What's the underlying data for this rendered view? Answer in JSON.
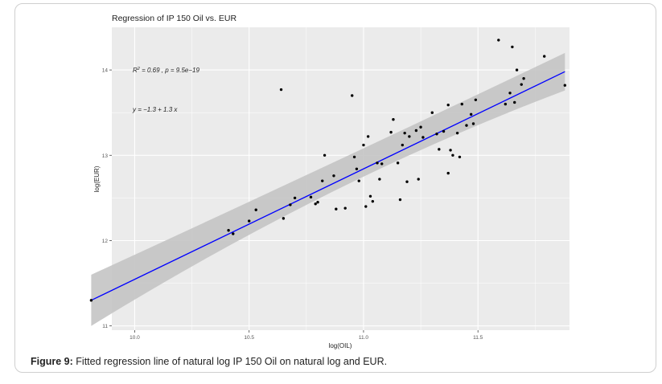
{
  "caption": {
    "label": "Figure 9:",
    "text": "Fitted regression line of natural log IP 150 Oil on natural log and EUR."
  },
  "chart_data": {
    "type": "scatter",
    "title": "Regression of IP 150 Oil vs. EUR",
    "xlabel": "log(OIL)",
    "ylabel": "log(EUR)",
    "xlim": [
      9.9,
      11.9
    ],
    "ylim": [
      10.95,
      14.5
    ],
    "xticks": [
      10.0,
      10.5,
      11.0,
      11.5
    ],
    "xtick_labels": [
      "10.0",
      "10.5",
      "11.0",
      "11.5"
    ],
    "yticks": [
      11,
      12,
      13,
      14
    ],
    "ytick_labels": [
      "11",
      "12",
      "13",
      "14"
    ],
    "grid": true,
    "annotations": {
      "r2_label": "R",
      "r2_sup": "2",
      "r2_rest": " = 0.69 , p = 9.5e−19",
      "equation": "y = −1.3 + 1.3 x"
    },
    "fit": {
      "x": [
        9.81,
        11.88
      ],
      "y": [
        11.3,
        13.98
      ],
      "band_upper": [
        11.6,
        14.2
      ],
      "band_lower": [
        11.0,
        13.76
      ],
      "band_upper_mid": 12.88,
      "band_lower_mid": 12.72,
      "x_mid": 10.85,
      "line_color": "#0000ff",
      "band_color": "#c4c4c4"
    },
    "points": [
      [
        9.81,
        11.3
      ],
      [
        10.41,
        12.12
      ],
      [
        10.43,
        12.08
      ],
      [
        10.5,
        12.23
      ],
      [
        10.53,
        12.36
      ],
      [
        10.64,
        13.77
      ],
      [
        10.65,
        12.26
      ],
      [
        10.68,
        12.42
      ],
      [
        10.7,
        12.5
      ],
      [
        10.77,
        12.51
      ],
      [
        10.79,
        12.43
      ],
      [
        10.8,
        12.45
      ],
      [
        10.82,
        12.7
      ],
      [
        10.83,
        13.0
      ],
      [
        10.87,
        12.76
      ],
      [
        10.88,
        12.37
      ],
      [
        10.92,
        12.38
      ],
      [
        10.95,
        13.7
      ],
      [
        10.96,
        12.98
      ],
      [
        10.97,
        12.84
      ],
      [
        10.98,
        12.7
      ],
      [
        11.0,
        13.12
      ],
      [
        11.01,
        12.4
      ],
      [
        11.02,
        13.22
      ],
      [
        11.03,
        12.52
      ],
      [
        11.04,
        12.46
      ],
      [
        11.06,
        12.91
      ],
      [
        11.07,
        12.72
      ],
      [
        11.08,
        12.9
      ],
      [
        11.12,
        13.27
      ],
      [
        11.13,
        13.42
      ],
      [
        11.15,
        12.91
      ],
      [
        11.16,
        12.48
      ],
      [
        11.17,
        13.12
      ],
      [
        11.18,
        13.26
      ],
      [
        11.19,
        12.69
      ],
      [
        11.2,
        13.22
      ],
      [
        11.23,
        13.29
      ],
      [
        11.24,
        12.72
      ],
      [
        11.25,
        13.33
      ],
      [
        11.26,
        13.21
      ],
      [
        11.3,
        13.5
      ],
      [
        11.32,
        13.25
      ],
      [
        11.33,
        13.07
      ],
      [
        11.35,
        13.28
      ],
      [
        11.37,
        13.59
      ],
      [
        11.37,
        12.79
      ],
      [
        11.38,
        13.06
      ],
      [
        11.39,
        13.0
      ],
      [
        11.41,
        13.26
      ],
      [
        11.42,
        12.98
      ],
      [
        11.43,
        13.6
      ],
      [
        11.45,
        13.35
      ],
      [
        11.47,
        13.48
      ],
      [
        11.48,
        13.37
      ],
      [
        11.49,
        13.65
      ],
      [
        11.59,
        14.35
      ],
      [
        11.62,
        13.6
      ],
      [
        11.64,
        13.73
      ],
      [
        11.65,
        14.27
      ],
      [
        11.66,
        13.62
      ],
      [
        11.67,
        14.0
      ],
      [
        11.69,
        13.83
      ],
      [
        11.7,
        13.9
      ],
      [
        11.79,
        14.16
      ],
      [
        11.88,
        13.82
      ]
    ]
  }
}
